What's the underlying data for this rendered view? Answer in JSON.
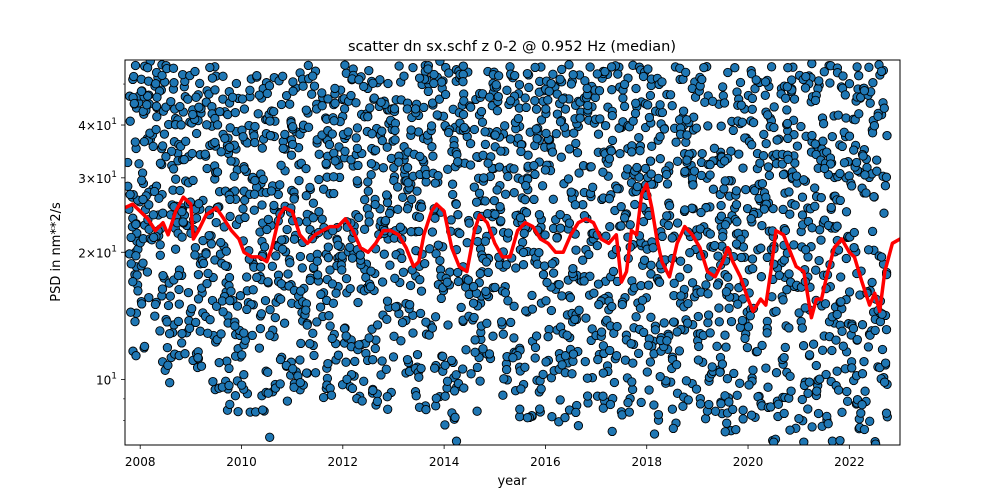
{
  "chart_data": {
    "type": "scatter",
    "title": "scatter dn sx.schf z 0-2 @ 0.952 Hz (median)",
    "xlabel": "year",
    "ylabel": "PSD in nm**2/s",
    "xlim": [
      2007.7,
      2023.0
    ],
    "ylim": [
      7.0,
      57.0
    ],
    "yscale": "log",
    "grid": false,
    "x_ticks": [
      {
        "value": 2008,
        "label": "2008"
      },
      {
        "value": 2010,
        "label": "2010"
      },
      {
        "value": 2012,
        "label": "2012"
      },
      {
        "value": 2014,
        "label": "2014"
      },
      {
        "value": 2016,
        "label": "2016"
      },
      {
        "value": 2018,
        "label": "2018"
      },
      {
        "value": 2020,
        "label": "2020"
      },
      {
        "value": 2022,
        "label": "2022"
      }
    ],
    "y_major_ticks": [
      {
        "value": 10,
        "base": "10",
        "exp": ""
      },
      {
        "value": 20,
        "base": "2×10",
        "exp": "1"
      },
      {
        "value": 30,
        "base": "3×10",
        "exp": "1"
      },
      {
        "value": 40,
        "base": "4×10",
        "exp": "1"
      }
    ],
    "y_minor_ticks": [
      8,
      9,
      50
    ],
    "series": [
      {
        "kind": "scatter",
        "color": "#1f77b4",
        "edgecolor": "#000000",
        "note_values": "dense daily scatter; representative envelope per season",
        "x": [
          2007.75,
          2008.0,
          2008.25,
          2008.5,
          2008.75,
          2009.0,
          2009.25,
          2009.5,
          2009.75,
          2010.0,
          2010.25,
          2010.5,
          2010.75,
          2011.0,
          2011.25,
          2011.5,
          2011.75,
          2012.0,
          2012.25,
          2012.5,
          2012.75,
          2013.0,
          2013.25,
          2013.5,
          2013.75,
          2014.0,
          2014.25,
          2014.5,
          2014.75,
          2015.0,
          2015.25,
          2015.5,
          2015.75,
          2016.0,
          2016.25,
          2016.5,
          2016.75,
          2017.0,
          2017.25,
          2017.5,
          2017.75,
          2018.0,
          2018.25,
          2018.5,
          2018.75,
          2019.0,
          2019.25,
          2019.5,
          2019.75,
          2020.0,
          2020.25,
          2020.5,
          2020.75,
          2021.0,
          2021.25,
          2021.5,
          2021.75,
          2022.0,
          2022.25,
          2022.5,
          2022.75
        ],
        "y_low": [
          10.5,
          11.5,
          12.0,
          9.5,
          10.0,
          11.0,
          10.0,
          9.0,
          8.0,
          8.5,
          7.5,
          7.0,
          8.0,
          9.0,
          9.5,
          9.0,
          9.0,
          9.5,
          9.0,
          8.5,
          8.0,
          8.0,
          8.0,
          8.5,
          8.0,
          7.5,
          7.0,
          8.0,
          8.5,
          9.0,
          8.5,
          8.0,
          8.0,
          8.0,
          7.5,
          7.0,
          8.0,
          8.0,
          7.5,
          7.0,
          8.0,
          8.0,
          7.0,
          7.5,
          8.0,
          8.0,
          7.5,
          7.0,
          7.5,
          7.5,
          7.0,
          7.0,
          7.0,
          7.0,
          7.0,
          7.0,
          7.0,
          7.0,
          7.0,
          7.0,
          7.0
        ],
        "y_high": [
          55,
          56,
          57,
          56,
          56,
          55,
          56,
          55,
          55,
          56,
          55,
          54,
          56,
          55,
          56,
          55,
          55,
          56,
          55,
          55,
          56,
          55,
          56,
          55,
          56,
          57,
          55,
          56,
          55,
          56,
          56,
          55,
          55,
          56,
          55,
          56,
          56,
          55,
          56,
          55,
          56,
          57,
          56,
          55,
          56,
          55,
          55,
          55,
          56,
          55,
          56,
          56,
          55,
          55,
          56,
          55,
          56,
          55,
          56,
          56,
          55
        ]
      },
      {
        "kind": "line",
        "label": "",
        "color": "#ff0000",
        "x": [
          2007.7,
          2007.85,
          2008.0,
          2008.15,
          2008.3,
          2008.45,
          2008.55,
          2008.7,
          2008.85,
          2009.0,
          2009.05,
          2009.15,
          2009.3,
          2009.5,
          2009.65,
          2009.8,
          2009.95,
          2010.05,
          2010.2,
          2010.35,
          2010.5,
          2010.6,
          2010.75,
          2010.85,
          2011.0,
          2011.15,
          2011.3,
          2011.45,
          2011.6,
          2011.75,
          2011.9,
          2012.05,
          2012.2,
          2012.35,
          2012.5,
          2012.65,
          2012.8,
          2012.95,
          2013.1,
          2013.25,
          2013.4,
          2013.5,
          2013.6,
          2013.75,
          2013.85,
          2014.0,
          2014.15,
          2014.3,
          2014.45,
          2014.6,
          2014.7,
          2014.85,
          2015.0,
          2015.15,
          2015.3,
          2015.45,
          2015.6,
          2015.75,
          2015.9,
          2016.05,
          2016.2,
          2016.35,
          2016.5,
          2016.65,
          2016.8,
          2016.95,
          2017.1,
          2017.25,
          2017.4,
          2017.5,
          2017.6,
          2017.7,
          2017.8,
          2017.9,
          2018.0,
          2018.1,
          2018.2,
          2018.3,
          2018.45,
          2018.6,
          2018.75,
          2018.9,
          2019.05,
          2019.2,
          2019.35,
          2019.5,
          2019.6,
          2019.7,
          2019.85,
          2020.0,
          2020.1,
          2020.25,
          2020.35,
          2020.45,
          2020.55,
          2020.7,
          2020.8,
          2020.95,
          2021.1,
          2021.25,
          2021.35,
          2021.45,
          2021.55,
          2021.7,
          2021.85,
          2022.0,
          2022.1,
          2022.25,
          2022.4,
          2022.5,
          2022.6,
          2022.7,
          2022.85,
          2023.0
        ],
        "y": [
          25.5,
          26.0,
          25.0,
          24.0,
          22.5,
          23.5,
          22.0,
          25.0,
          27.0,
          26.0,
          21.5,
          22.5,
          24.5,
          25.5,
          24.0,
          22.5,
          21.5,
          20.0,
          19.5,
          19.5,
          19.0,
          20.5,
          24.5,
          25.5,
          25.0,
          22.0,
          21.0,
          22.0,
          22.5,
          23.0,
          23.0,
          24.0,
          22.5,
          20.5,
          20.0,
          21.0,
          22.5,
          22.5,
          22.0,
          20.5,
          18.5,
          19.0,
          22.0,
          25.0,
          26.0,
          25.0,
          20.5,
          18.5,
          18.0,
          22.5,
          24.5,
          23.5,
          21.0,
          19.5,
          19.5,
          22.5,
          23.5,
          23.0,
          21.5,
          21.0,
          20.0,
          20.0,
          22.0,
          23.5,
          24.0,
          23.5,
          21.5,
          21.0,
          22.0,
          17.0,
          18.0,
          22.5,
          22.0,
          27.5,
          29.0,
          25.5,
          21.5,
          19.0,
          17.5,
          21.0,
          23.0,
          22.0,
          20.5,
          18.0,
          17.5,
          19.0,
          20.5,
          19.0,
          17.5,
          15.5,
          14.5,
          15.5,
          15.0,
          18.0,
          22.5,
          22.0,
          20.5,
          18.5,
          18.0,
          14.0,
          15.5,
          15.5,
          17.5,
          20.5,
          21.5,
          20.0,
          19.5,
          17.0,
          15.0,
          16.0,
          14.5,
          18.0,
          21.0,
          21.5
        ]
      }
    ]
  }
}
